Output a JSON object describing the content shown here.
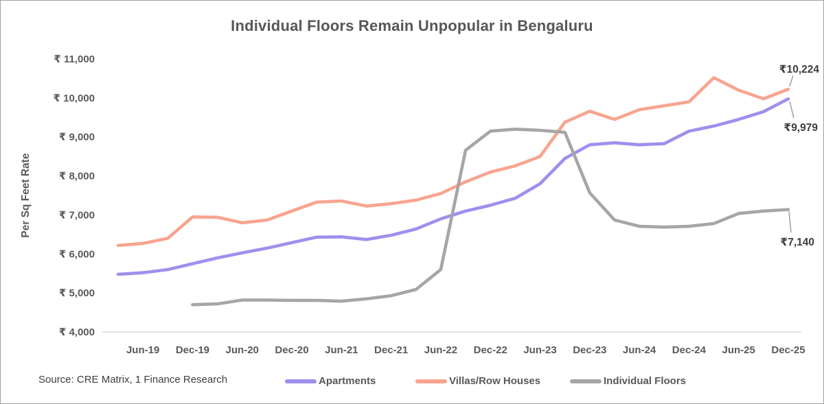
{
  "header": {
    "title": "Individual Floors Remain Unpopular in Bengaluru"
  },
  "footer": {
    "source": "Source: CRE Matrix, 1 Finance Research"
  },
  "chart_data": {
    "type": "line",
    "title": "Individual Floors Remain Unpopular in Bengaluru",
    "xlabel": "",
    "ylabel": "Per Sq Feet Rate",
    "ylim": [
      4000,
      11000
    ],
    "ytick_step": 1000,
    "ytick_labels": [
      "₹ 11,000",
      "₹ 10,000",
      "₹ 9,000",
      "₹ 8,000",
      "₹ 7,000",
      "₹ 6,000",
      "₹ 5,000",
      "₹ 4,000"
    ],
    "currency_prefix": "₹",
    "grid": "off",
    "legend_position": "bottom",
    "x": [
      "Mar-19",
      "Jun-19",
      "Sep-19",
      "Dec-19",
      "Mar-20",
      "Jun-20",
      "Sep-20",
      "Dec-20",
      "Mar-21",
      "Jun-21",
      "Sep-21",
      "Dec-21",
      "Mar-22",
      "Jun-22",
      "Sep-22",
      "Dec-22",
      "Mar-23",
      "Jun-23",
      "Sep-23",
      "Dec-23",
      "Mar-24",
      "Jun-24",
      "Sep-24",
      "Dec-24",
      "Mar-25",
      "Jun-25",
      "Sep-25",
      "Dec-25"
    ],
    "xtick_labels": [
      "Jun-19",
      "Dec-19",
      "Jun-20",
      "Dec-20",
      "Jun-21",
      "Dec-21",
      "Jun-22",
      "Dec-22",
      "Jun-23",
      "Dec-23",
      "Jun-24",
      "Dec-24",
      "Jun-25",
      "Dec-25"
    ],
    "series": [
      {
        "name": "Apartments",
        "color": "#9e8fee",
        "end_label": "₹9,979",
        "values": [
          5480,
          5520,
          5600,
          5750,
          5900,
          6030,
          6150,
          6290,
          6430,
          6440,
          6370,
          6480,
          6640,
          6900,
          7100,
          7250,
          7430,
          7800,
          8450,
          8800,
          8850,
          8800,
          8830,
          9150,
          9280,
          9450,
          9650,
          9979
        ]
      },
      {
        "name": "Villas/Row Houses",
        "color": "#f8a48f",
        "end_label": "₹10,224",
        "values": [
          6220,
          6270,
          6400,
          6950,
          6940,
          6800,
          6870,
          7100,
          7330,
          7360,
          7230,
          7290,
          7380,
          7550,
          7850,
          8100,
          8260,
          8500,
          9380,
          9660,
          9450,
          9700,
          9800,
          9900,
          10520,
          10200,
          9980,
          10224
        ]
      },
      {
        "name": "Individual Floors",
        "color": "#a6a6a6",
        "end_label": "₹7,140",
        "values": [
          null,
          null,
          null,
          4700,
          4720,
          4820,
          4820,
          4810,
          4810,
          4790,
          4850,
          4930,
          5090,
          5600,
          8660,
          9150,
          9200,
          9170,
          9120,
          7570,
          6870,
          6710,
          6690,
          6710,
          6780,
          7040,
          7100,
          7140
        ]
      }
    ]
  }
}
